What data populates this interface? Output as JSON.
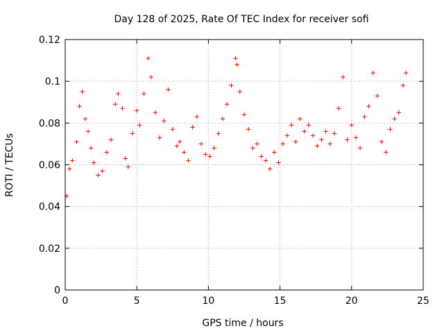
{
  "chart_data": {
    "type": "scatter",
    "title": "Day 128 of 2025, Rate Of TEC Index for receiver sofi",
    "xlabel": "GPS time / hours",
    "ylabel": "ROTI / TECUs",
    "xlim": [
      0,
      25
    ],
    "ylim": [
      0,
      0.12
    ],
    "x_ticks": [
      0,
      5,
      10,
      15,
      20,
      25
    ],
    "x_tick_labels": [
      "0",
      "5",
      "10",
      "15",
      "20",
      "25"
    ],
    "y_ticks": [
      0,
      0.02,
      0.04,
      0.06,
      0.08,
      0.1,
      0.12
    ],
    "y_tick_labels": [
      "0",
      "0.02",
      "0.04",
      "0.06",
      "0.08",
      "0.1",
      "0.12"
    ],
    "grid": true,
    "legend": "none",
    "marker": "plus",
    "color": "#ff0000",
    "series": [
      {
        "x": [
          0.1,
          0.3,
          0.5,
          0.8,
          1.0,
          1.2,
          1.4,
          1.6,
          1.8,
          2.0,
          2.3,
          2.6,
          2.9,
          3.2,
          3.5,
          3.7,
          4.0,
          4.2,
          4.4,
          4.7,
          5.0,
          5.2,
          5.5,
          5.8,
          6.0,
          6.3,
          6.6,
          6.9,
          7.2,
          7.5,
          7.8,
          8.0,
          8.3,
          8.6,
          8.9,
          9.2,
          9.5,
          9.8,
          10.1,
          10.4,
          10.7,
          11.0,
          11.3,
          11.6,
          11.9,
          12.0,
          12.2,
          12.5,
          12.8,
          13.1,
          13.4,
          13.7,
          14.0,
          14.3,
          14.6,
          14.9,
          15.2,
          15.5,
          15.8,
          16.1,
          16.4,
          16.7,
          17.0,
          17.3,
          17.6,
          17.9,
          18.2,
          18.5,
          18.8,
          19.1,
          19.4,
          19.7,
          20.0,
          20.3,
          20.6,
          20.9,
          21.2,
          21.5,
          21.8,
          22.1,
          22.4,
          22.7,
          23.0,
          23.3,
          23.6,
          23.8
        ],
        "y": [
          0.045,
          0.058,
          0.062,
          0.071,
          0.088,
          0.095,
          0.082,
          0.076,
          0.068,
          0.061,
          0.055,
          0.057,
          0.066,
          0.072,
          0.089,
          0.094,
          0.087,
          0.063,
          0.059,
          0.075,
          0.086,
          0.079,
          0.094,
          0.111,
          0.102,
          0.085,
          0.073,
          0.081,
          0.096,
          0.077,
          0.069,
          0.071,
          0.066,
          0.062,
          0.078,
          0.083,
          0.07,
          0.065,
          0.064,
          0.068,
          0.075,
          0.082,
          0.089,
          0.098,
          0.111,
          0.108,
          0.095,
          0.084,
          0.077,
          0.068,
          0.07,
          0.064,
          0.062,
          0.058,
          0.066,
          0.061,
          0.07,
          0.074,
          0.079,
          0.071,
          0.082,
          0.076,
          0.079,
          0.074,
          0.069,
          0.072,
          0.076,
          0.07,
          0.075,
          0.087,
          0.102,
          0.072,
          0.079,
          0.073,
          0.068,
          0.083,
          0.088,
          0.104,
          0.093,
          0.071,
          0.066,
          0.077,
          0.082,
          0.085,
          0.098,
          0.104
        ]
      }
    ]
  }
}
